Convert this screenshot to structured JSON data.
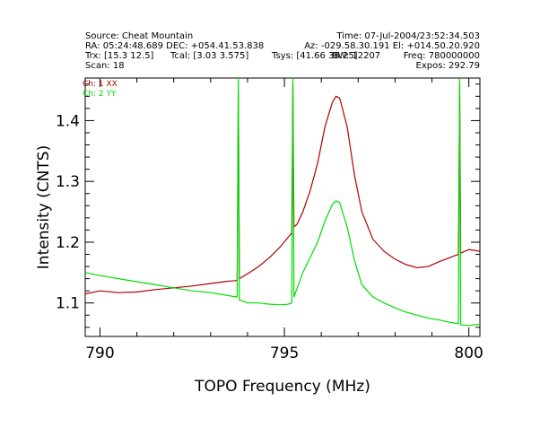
{
  "header": {
    "source": "Source: Cheat Mountain",
    "time": "Time: 07-Jul-2004/23:52:34.503",
    "ra_dec": "RA: 05:24:48.689  DEC: +054.41.53.838",
    "az_el": "Az: -029.58.30.191  El: +014.50.20.920",
    "trx": "Trx: [15.3 12.5]",
    "tcal": "Tcal: [3.03 3.575]",
    "tsys": "Tsys: [41.66 38.25]",
    "bw": "BW: 12207",
    "freq": "Freq: 780000000",
    "scan": "Scan: 18",
    "expos": "Expos: 292.79"
  },
  "colors": {
    "ch1": "#b00000",
    "ch2": "#00dd00"
  },
  "chart_data": {
    "type": "line",
    "xlabel": "TOPO Frequency (MHz)",
    "ylabel": "Intensity (CNTS)",
    "xlim": [
      789.6,
      800.3
    ],
    "ylim": [
      1.045,
      1.47
    ],
    "xticks": [
      790,
      795,
      800
    ],
    "xtick_labels": [
      "790",
      "795",
      "800"
    ],
    "yticks": [
      1.1,
      1.2,
      1.3,
      1.4
    ],
    "ytick_labels": [
      "1.1",
      "1.2",
      "1.3",
      "1.4"
    ],
    "legend_position": "top-left",
    "series": [
      {
        "name": "Ch: 1 XX",
        "color": "#b00000",
        "x": [
          789.6,
          790.0,
          790.5,
          791.0,
          791.5,
          792.0,
          792.5,
          793.0,
          793.5,
          793.72,
          793.75,
          793.78,
          794.0,
          794.3,
          794.6,
          794.9,
          795.1,
          795.2,
          795.23,
          795.26,
          795.35,
          795.5,
          795.7,
          795.9,
          796.1,
          796.3,
          796.4,
          796.5,
          796.7,
          796.9,
          797.1,
          797.4,
          797.7,
          798.0,
          798.3,
          798.6,
          798.9,
          799.2,
          799.5,
          799.72,
          799.75,
          799.78,
          800.0,
          800.3
        ],
        "values": [
          1.115,
          1.12,
          1.117,
          1.118,
          1.122,
          1.125,
          1.128,
          1.132,
          1.136,
          1.137,
          1.45,
          1.14,
          1.148,
          1.16,
          1.175,
          1.193,
          1.208,
          1.215,
          1.46,
          1.225,
          1.23,
          1.25,
          1.285,
          1.33,
          1.39,
          1.43,
          1.44,
          1.437,
          1.39,
          1.31,
          1.25,
          1.205,
          1.185,
          1.172,
          1.163,
          1.158,
          1.16,
          1.168,
          1.175,
          1.18,
          1.46,
          1.182,
          1.188,
          1.185
        ]
      },
      {
        "name": "Ch: 2 YY",
        "color": "#00dd00",
        "x": [
          789.6,
          790.0,
          790.5,
          791.0,
          791.5,
          792.0,
          792.5,
          793.0,
          793.5,
          793.72,
          793.75,
          793.78,
          794.0,
          794.3,
          794.6,
          794.9,
          795.1,
          795.2,
          795.23,
          795.26,
          795.35,
          795.5,
          795.7,
          795.9,
          796.1,
          796.3,
          796.4,
          796.5,
          796.7,
          796.9,
          797.1,
          797.4,
          797.7,
          798.0,
          798.3,
          798.6,
          798.9,
          799.2,
          799.5,
          799.72,
          799.75,
          799.78,
          800.0,
          800.3
        ],
        "values": [
          1.15,
          1.145,
          1.14,
          1.135,
          1.13,
          1.125,
          1.12,
          1.117,
          1.112,
          1.11,
          1.47,
          1.105,
          1.1,
          1.1,
          1.098,
          1.097,
          1.098,
          1.1,
          1.47,
          1.11,
          1.125,
          1.15,
          1.175,
          1.2,
          1.235,
          1.262,
          1.268,
          1.265,
          1.225,
          1.17,
          1.13,
          1.11,
          1.1,
          1.092,
          1.085,
          1.08,
          1.075,
          1.072,
          1.068,
          1.066,
          1.47,
          1.064,
          1.063,
          1.065
        ]
      }
    ]
  }
}
